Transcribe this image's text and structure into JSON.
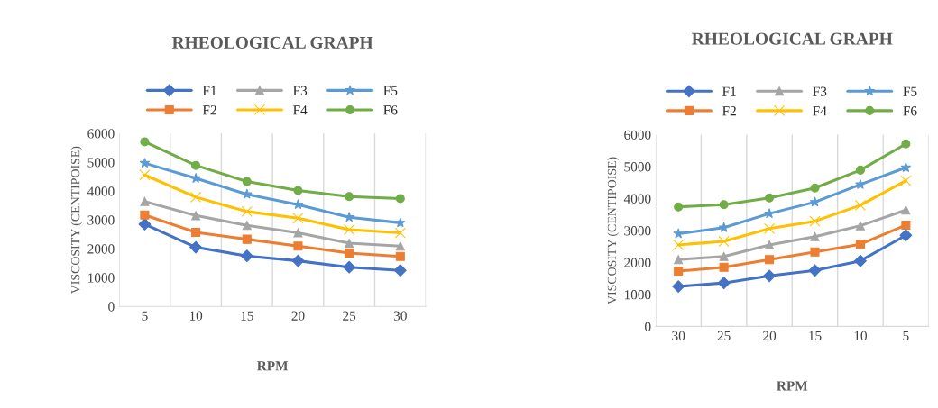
{
  "chart_data": [
    {
      "type": "line",
      "title": "RHEOLOGICAL GRAPH",
      "xlabel": "RPM",
      "ylabel": "VISCOSITY (CENTIPOISE)",
      "categories": [
        "5",
        "10",
        "15",
        "20",
        "25",
        "30"
      ],
      "series": [
        {
          "name": "F1",
          "color": "#4472c4",
          "marker": "diamond",
          "values": [
            2850,
            2050,
            1750,
            1580,
            1360,
            1250
          ]
        },
        {
          "name": "F2",
          "color": "#ed7d31",
          "marker": "square",
          "values": [
            3170,
            2570,
            2330,
            2090,
            1850,
            1730
          ]
        },
        {
          "name": "F3",
          "color": "#a5a5a5",
          "marker": "triangle",
          "values": [
            3640,
            3150,
            2810,
            2550,
            2190,
            2090
          ]
        },
        {
          "name": "F4",
          "color": "#ffc000",
          "marker": "cross",
          "values": [
            4560,
            3790,
            3290,
            3060,
            2660,
            2550
          ]
        },
        {
          "name": "F5",
          "color": "#5b9bd5",
          "marker": "star",
          "values": [
            4970,
            4440,
            3890,
            3530,
            3090,
            2900
          ]
        },
        {
          "name": "F6",
          "color": "#70ad47",
          "marker": "circle",
          "values": [
            5710,
            4890,
            4330,
            4020,
            3810,
            3740
          ]
        }
      ],
      "ylim": [
        0,
        6000
      ],
      "yticks": [
        0,
        1000,
        2000,
        3000,
        4000,
        5000,
        6000
      ],
      "grid": "x",
      "legend": "top"
    },
    {
      "type": "line",
      "title": "RHEOLOGICAL GRAPH",
      "xlabel": "RPM",
      "ylabel": "VISCOSITY (CENTIPOISE)",
      "categories": [
        "30",
        "25",
        "20",
        "15",
        "10",
        "5"
      ],
      "series": [
        {
          "name": "F1",
          "color": "#4472c4",
          "marker": "diamond",
          "values": [
            1250,
            1360,
            1580,
            1750,
            2050,
            2850
          ]
        },
        {
          "name": "F2",
          "color": "#ed7d31",
          "marker": "square",
          "values": [
            1730,
            1850,
            2090,
            2330,
            2570,
            3170
          ]
        },
        {
          "name": "F3",
          "color": "#a5a5a5",
          "marker": "triangle",
          "values": [
            2090,
            2190,
            2550,
            2810,
            3150,
            3640
          ]
        },
        {
          "name": "F4",
          "color": "#ffc000",
          "marker": "cross",
          "values": [
            2550,
            2660,
            3060,
            3290,
            3790,
            4560
          ]
        },
        {
          "name": "F5",
          "color": "#5b9bd5",
          "marker": "star",
          "values": [
            2900,
            3090,
            3530,
            3890,
            4440,
            4970
          ]
        },
        {
          "name": "F6",
          "color": "#70ad47",
          "marker": "circle",
          "values": [
            3740,
            3810,
            4020,
            4330,
            4890,
            5710
          ]
        }
      ],
      "ylim": [
        0,
        6000
      ],
      "yticks": [
        0,
        1000,
        2000,
        3000,
        4000,
        5000,
        6000
      ],
      "grid": "x",
      "legend": "top"
    }
  ]
}
